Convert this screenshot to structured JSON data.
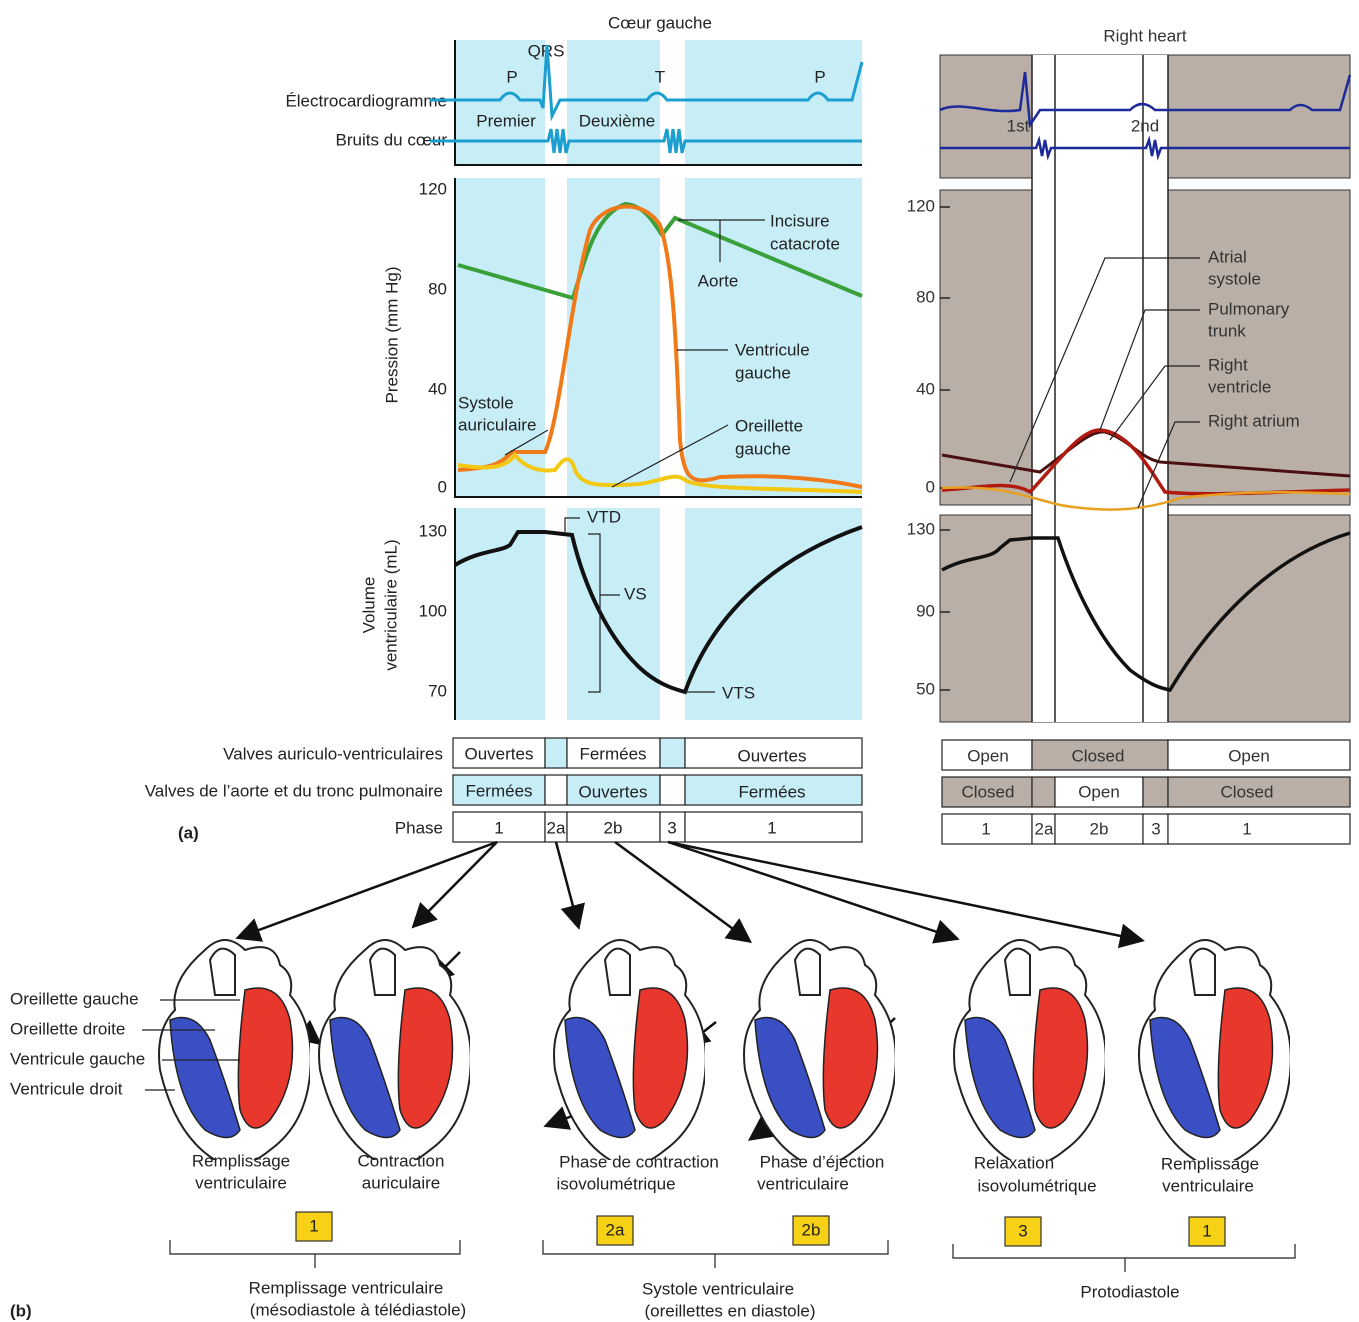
{
  "left_heart": {
    "title": "Cœur gauche",
    "ecg_label": "Électrocardiogramme",
    "sounds_label": "Bruits du cœur",
    "ecg_waves": [
      "P",
      "QRS",
      "T",
      "P"
    ],
    "sounds": [
      "Premier",
      "Deuxième"
    ],
    "pressure_axis": {
      "label": "Pression (mm Hg)",
      "ticks": [
        "120",
        "80",
        "40",
        "0"
      ]
    },
    "pressure_annotations": {
      "notch": [
        "Incisure",
        "catacrote"
      ],
      "aorta": "Aorte",
      "ventricle": [
        "Ventricule",
        "gauche"
      ],
      "atrial_systole": [
        "Systole",
        "auriculaire"
      ],
      "atrium": [
        "Oreillette",
        "gauche"
      ]
    },
    "volume_axis": {
      "label": [
        "Volume",
        "ventriculaire (mL)"
      ],
      "ticks": [
        "130",
        "100",
        "70"
      ]
    },
    "volume_annotations": [
      "VTD",
      "VS",
      "VTS"
    ],
    "rows": [
      {
        "label": "Valves auriculo-ventriculaires",
        "cells": [
          "Ouvertes",
          "Fermées",
          "Ouvertes"
        ]
      },
      {
        "label": "Valves de l’aorte et du tronc pulmonaire",
        "cells": [
          "Fermées",
          "Ouvertes",
          "Fermées"
        ]
      },
      {
        "label": "Phase",
        "cells": [
          "1",
          "2a",
          "2b",
          "3",
          "1"
        ]
      }
    ],
    "panel_label": "(a)"
  },
  "right_heart": {
    "title": "Right heart",
    "sounds": [
      "1st",
      "2nd"
    ],
    "pressure_ticks": [
      "120",
      "80",
      "40",
      "0"
    ],
    "annotations": [
      [
        "Atrial",
        "systole"
      ],
      [
        "Pulmonary",
        "trunk"
      ],
      [
        "Right",
        "ventricle"
      ],
      [
        "Right atrium"
      ]
    ],
    "volume_ticks": [
      "130",
      "90",
      "50"
    ],
    "rows": [
      [
        "Open",
        "Closed",
        "Open"
      ],
      [
        "Closed",
        "Open",
        "Closed"
      ],
      [
        "1",
        "2a",
        "2b",
        "3",
        "1"
      ]
    ]
  },
  "heart_labels": [
    "Oreillette gauche",
    "Oreillette droite",
    "Ventricule gauche",
    "Ventricule droit"
  ],
  "stages": [
    {
      "caption": [
        "Remplissage",
        "ventriculaire"
      ]
    },
    {
      "caption": [
        "Contraction",
        "auriculaire"
      ]
    },
    {
      "caption": [
        "Phase de contraction",
        "isovolumétrique"
      ]
    },
    {
      "caption": [
        "Phase d’éjection",
        "ventriculaire"
      ]
    },
    {
      "caption": [
        "Relaxation",
        "isovolumétrique"
      ]
    },
    {
      "caption": [
        "Remplissage",
        "ventriculaire"
      ]
    }
  ],
  "phase_badges": [
    "1",
    "2a",
    "2b",
    "3",
    "1"
  ],
  "groups": [
    [
      "Remplissage ventriculaire",
      "(mésodiastole à télédiastole)"
    ],
    [
      "Systole ventriculaire",
      "(oreillettes en diastole)"
    ],
    [
      "Protodiastole"
    ]
  ],
  "panel_b_label": "(b)"
}
